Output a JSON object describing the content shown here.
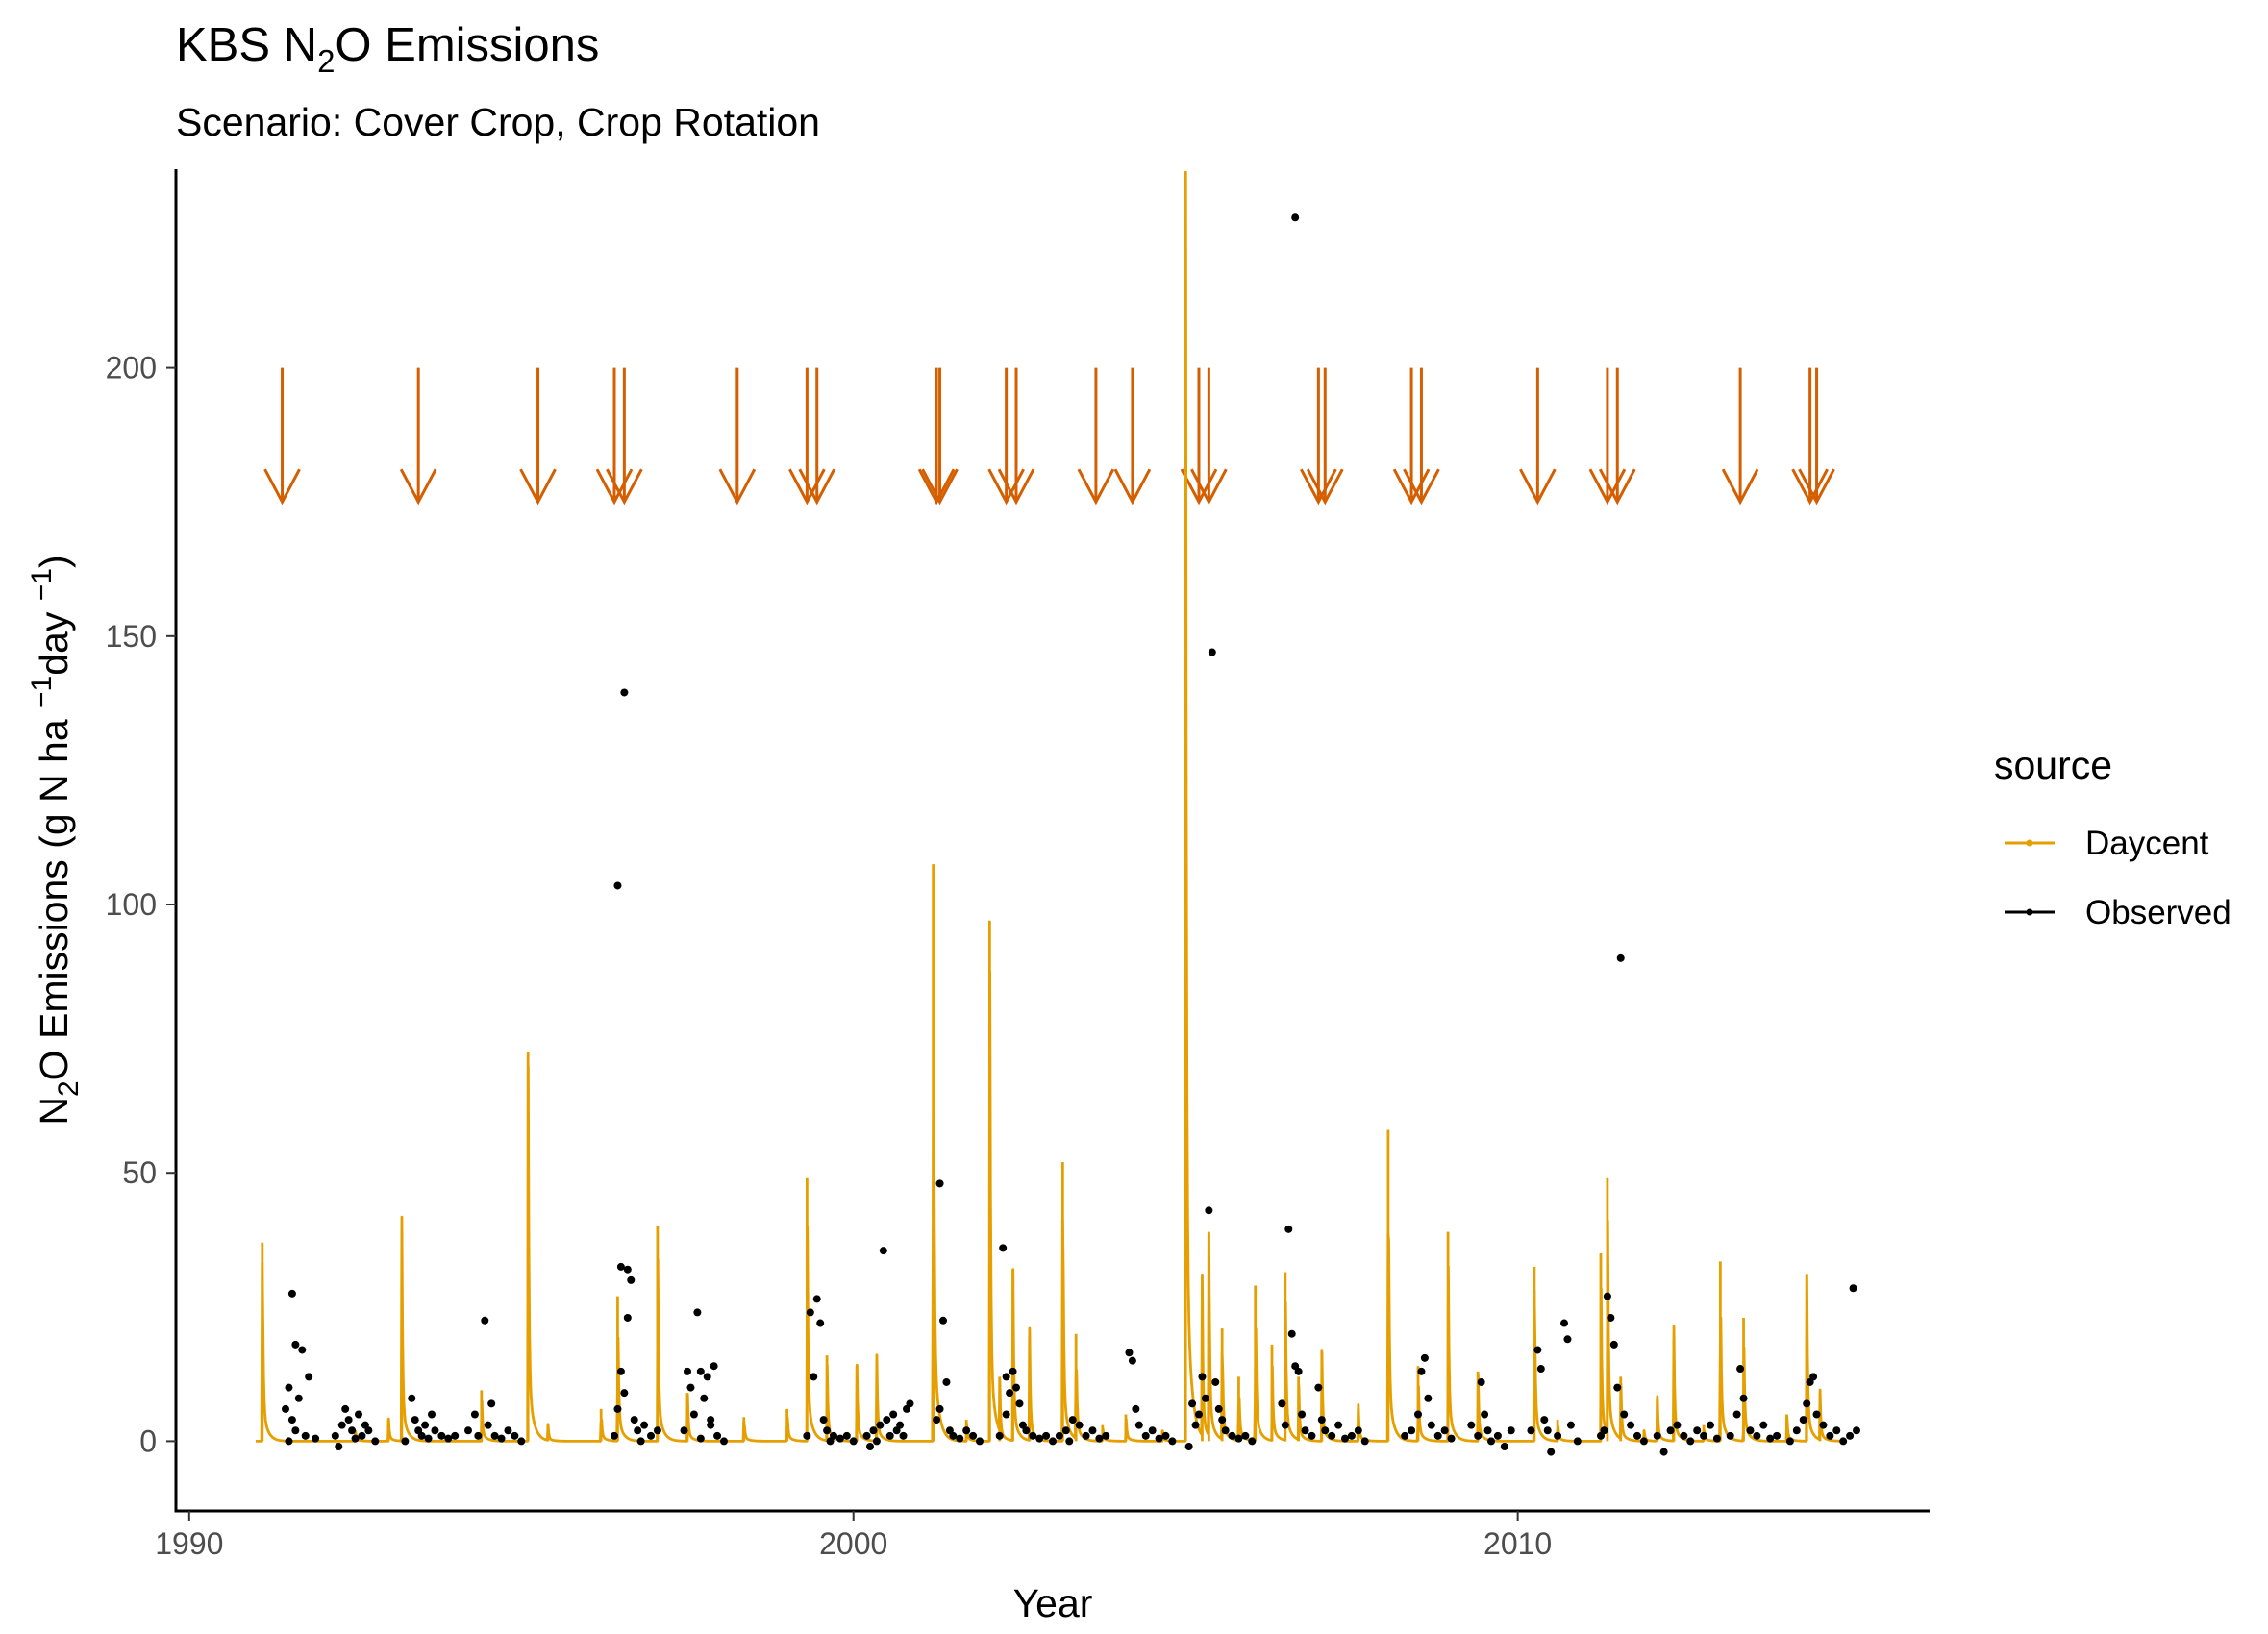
{
  "chart_data": {
    "type": "line",
    "title_prefix": "KBS N",
    "title_sub": "2",
    "title_suffix": "O Emissions",
    "subtitle": "Scenario: Cover Crop, Crop Rotation",
    "xlabel": "Year",
    "ylabel_prefix": "N",
    "ylabel_sub": "2",
    "ylabel_mid": "O Emissions (g N ha ",
    "ylabel_sup1": "−1",
    "ylabel_mid2": "day ",
    "ylabel_sup2": "−1",
    "ylabel_suffix": ")",
    "xlim": [
      1989.8,
      2016.2
    ],
    "ylim": [
      -13,
      237
    ],
    "x_ticks": [
      1990,
      2000,
      2010
    ],
    "x_tick_labels": [
      "1990",
      "2000",
      "2010"
    ],
    "y_ticks": [
      0,
      50,
      100,
      150,
      200
    ],
    "y_tick_labels": [
      "0",
      "50",
      "100",
      "150",
      "200"
    ],
    "grid": false,
    "legend": {
      "title": "source",
      "position": "right",
      "entries": [
        {
          "label": "Daycent",
          "color": "#E69F00"
        },
        {
          "label": "Observed",
          "color": "#000000"
        }
      ]
    },
    "colors": {
      "daycent": "#E69F00",
      "observed": "#000000",
      "events": "#D55E00"
    },
    "event_arrows": {
      "y_start": 200,
      "y_end": 175,
      "x": [
        1991.4,
        1993.45,
        1995.25,
        1996.4,
        1996.55,
        1998.25,
        1999.3,
        1999.45,
        2001.25,
        2001.3,
        2002.3,
        2002.45,
        2003.65,
        2004.2,
        2005.2,
        2005.35,
        2007.0,
        2007.1,
        2008.4,
        2008.55,
        2010.3,
        2011.35,
        2011.5,
        2013.35,
        2014.4,
        2014.5
      ]
    },
    "daycent_peaks": [
      {
        "x": 1991.1,
        "y": 37
      },
      {
        "x": 1992.5,
        "y": 2
      },
      {
        "x": 1993.0,
        "y": 4
      },
      {
        "x": 1993.2,
        "y": 37.5
      },
      {
        "x": 1994.4,
        "y": 9.5
      },
      {
        "x": 1995.1,
        "y": 72.5
      },
      {
        "x": 1995.4,
        "y": 3
      },
      {
        "x": 1996.2,
        "y": 6
      },
      {
        "x": 1996.45,
        "y": 27
      },
      {
        "x": 1997.05,
        "y": 40
      },
      {
        "x": 1997.5,
        "y": 9
      },
      {
        "x": 1998.35,
        "y": 4.5
      },
      {
        "x": 1999.0,
        "y": 6
      },
      {
        "x": 1999.3,
        "y": 49
      },
      {
        "x": 1999.6,
        "y": 16
      },
      {
        "x": 2000.05,
        "y": 14
      },
      {
        "x": 2000.35,
        "y": 14.5
      },
      {
        "x": 2001.2,
        "y": 107.5
      },
      {
        "x": 2001.7,
        "y": 4
      },
      {
        "x": 2002.05,
        "y": 97
      },
      {
        "x": 2002.2,
        "y": 12
      },
      {
        "x": 2002.4,
        "y": 32
      },
      {
        "x": 2002.65,
        "y": 19.5
      },
      {
        "x": 2003.15,
        "y": 52
      },
      {
        "x": 2003.35,
        "y": 20
      },
      {
        "x": 2003.75,
        "y": 3
      },
      {
        "x": 2004.1,
        "y": 5
      },
      {
        "x": 2004.65,
        "y": 2
      },
      {
        "x": 2005.0,
        "y": 222
      },
      {
        "x": 2005.25,
        "y": 27
      },
      {
        "x": 2005.35,
        "y": 39
      },
      {
        "x": 2005.55,
        "y": 21
      },
      {
        "x": 2005.8,
        "y": 12
      },
      {
        "x": 2006.05,
        "y": 29
      },
      {
        "x": 2006.3,
        "y": 18
      },
      {
        "x": 2006.5,
        "y": 31.5
      },
      {
        "x": 2006.7,
        "y": 12
      },
      {
        "x": 2007.05,
        "y": 17
      },
      {
        "x": 2007.6,
        "y": 6
      },
      {
        "x": 2008.05,
        "y": 58
      },
      {
        "x": 2008.5,
        "y": 14
      },
      {
        "x": 2008.95,
        "y": 39
      },
      {
        "x": 2009.4,
        "y": 13
      },
      {
        "x": 2010.25,
        "y": 32.5
      },
      {
        "x": 2010.6,
        "y": 4
      },
      {
        "x": 2011.25,
        "y": 35
      },
      {
        "x": 2011.35,
        "y": 49
      },
      {
        "x": 2011.55,
        "y": 12
      },
      {
        "x": 2011.9,
        "y": 2
      },
      {
        "x": 2012.1,
        "y": 8
      },
      {
        "x": 2012.35,
        "y": 19
      },
      {
        "x": 2012.8,
        "y": 3
      },
      {
        "x": 2013.05,
        "y": 33.5
      },
      {
        "x": 2013.4,
        "y": 23
      },
      {
        "x": 2014.05,
        "y": 5
      },
      {
        "x": 2014.35,
        "y": 31
      },
      {
        "x": 2014.55,
        "y": 9
      }
    ],
    "observed_points": [
      {
        "x": 1991.55,
        "y": 27.5
      },
      {
        "x": 1991.5,
        "y": 10
      },
      {
        "x": 1991.6,
        "y": 18
      },
      {
        "x": 1991.7,
        "y": 17
      },
      {
        "x": 1991.45,
        "y": 6
      },
      {
        "x": 1991.55,
        "y": 4
      },
      {
        "x": 1991.65,
        "y": 8
      },
      {
        "x": 1991.6,
        "y": 2
      },
      {
        "x": 1991.75,
        "y": 1
      },
      {
        "x": 1991.9,
        "y": 0.5
      },
      {
        "x": 1991.5,
        "y": 0
      },
      {
        "x": 1991.8,
        "y": 12
      },
      {
        "x": 1992.2,
        "y": 1
      },
      {
        "x": 1992.3,
        "y": 3
      },
      {
        "x": 1992.35,
        "y": 6
      },
      {
        "x": 1992.4,
        "y": 4
      },
      {
        "x": 1992.45,
        "y": 2
      },
      {
        "x": 1992.5,
        "y": 0.5
      },
      {
        "x": 1992.55,
        "y": 5
      },
      {
        "x": 1992.6,
        "y": 1
      },
      {
        "x": 1992.7,
        "y": 2
      },
      {
        "x": 1992.8,
        "y": 0
      },
      {
        "x": 1992.25,
        "y": -1
      },
      {
        "x": 1992.65,
        "y": 3
      },
      {
        "x": 1993.35,
        "y": 8
      },
      {
        "x": 1993.4,
        "y": 4
      },
      {
        "x": 1993.45,
        "y": 2
      },
      {
        "x": 1993.5,
        "y": 1
      },
      {
        "x": 1993.55,
        "y": 3
      },
      {
        "x": 1993.6,
        "y": 0.5
      },
      {
        "x": 1993.7,
        "y": 2
      },
      {
        "x": 1993.8,
        "y": 1
      },
      {
        "x": 1993.25,
        "y": 0
      },
      {
        "x": 1993.65,
        "y": 5
      },
      {
        "x": 1993.9,
        "y": 0.5
      },
      {
        "x": 1994.0,
        "y": 1
      },
      {
        "x": 1994.2,
        "y": 2
      },
      {
        "x": 1994.3,
        "y": 5
      },
      {
        "x": 1994.35,
        "y": 1
      },
      {
        "x": 1994.45,
        "y": 22.5
      },
      {
        "x": 1994.5,
        "y": 3
      },
      {
        "x": 1994.55,
        "y": 7
      },
      {
        "x": 1994.6,
        "y": 1
      },
      {
        "x": 1994.7,
        "y": 0.5
      },
      {
        "x": 1994.8,
        "y": 2
      },
      {
        "x": 1994.9,
        "y": 1
      },
      {
        "x": 1995.0,
        "y": 0
      },
      {
        "x": 1996.45,
        "y": 103.5
      },
      {
        "x": 1996.55,
        "y": 139.5
      },
      {
        "x": 1996.5,
        "y": 32.5
      },
      {
        "x": 1996.6,
        "y": 32
      },
      {
        "x": 1996.65,
        "y": 30
      },
      {
        "x": 1996.6,
        "y": 23
      },
      {
        "x": 1996.5,
        "y": 13
      },
      {
        "x": 1996.55,
        "y": 9
      },
      {
        "x": 1996.45,
        "y": 6
      },
      {
        "x": 1996.7,
        "y": 4
      },
      {
        "x": 1996.75,
        "y": 2
      },
      {
        "x": 1996.85,
        "y": 3
      },
      {
        "x": 1996.95,
        "y": 1
      },
      {
        "x": 1997.05,
        "y": 2
      },
      {
        "x": 1996.4,
        "y": 1
      },
      {
        "x": 1996.8,
        "y": 0
      },
      {
        "x": 1997.5,
        "y": 13
      },
      {
        "x": 1997.55,
        "y": 10
      },
      {
        "x": 1997.65,
        "y": 24
      },
      {
        "x": 1997.7,
        "y": 13
      },
      {
        "x": 1997.8,
        "y": 12
      },
      {
        "x": 1997.9,
        "y": 14
      },
      {
        "x": 1997.6,
        "y": 5
      },
      {
        "x": 1997.75,
        "y": 8
      },
      {
        "x": 1997.85,
        "y": 3
      },
      {
        "x": 1997.95,
        "y": 1
      },
      {
        "x": 1998.05,
        "y": 0
      },
      {
        "x": 1997.45,
        "y": 2
      },
      {
        "x": 1997.7,
        "y": 0.5
      },
      {
        "x": 1997.85,
        "y": 4
      },
      {
        "x": 1999.35,
        "y": 24
      },
      {
        "x": 1999.45,
        "y": 26.5
      },
      {
        "x": 1999.5,
        "y": 22
      },
      {
        "x": 1999.4,
        "y": 12
      },
      {
        "x": 1999.55,
        "y": 4
      },
      {
        "x": 1999.6,
        "y": 2
      },
      {
        "x": 1999.7,
        "y": 1
      },
      {
        "x": 1999.8,
        "y": 0.5
      },
      {
        "x": 1999.9,
        "y": 1
      },
      {
        "x": 2000.0,
        "y": 0
      },
      {
        "x": 1999.3,
        "y": 1
      },
      {
        "x": 1999.65,
        "y": 0
      },
      {
        "x": 2000.2,
        "y": 1
      },
      {
        "x": 2000.3,
        "y": 2
      },
      {
        "x": 2000.35,
        "y": 0
      },
      {
        "x": 2000.4,
        "y": 3
      },
      {
        "x": 2000.45,
        "y": 35.5
      },
      {
        "x": 2000.5,
        "y": 4
      },
      {
        "x": 2000.55,
        "y": 1
      },
      {
        "x": 2000.6,
        "y": 5
      },
      {
        "x": 2000.65,
        "y": 2
      },
      {
        "x": 2000.7,
        "y": 3
      },
      {
        "x": 2000.75,
        "y": 1
      },
      {
        "x": 2000.8,
        "y": 6
      },
      {
        "x": 2000.85,
        "y": 7
      },
      {
        "x": 2000.25,
        "y": -1
      },
      {
        "x": 2001.3,
        "y": 48
      },
      {
        "x": 2001.35,
        "y": 22.5
      },
      {
        "x": 2001.4,
        "y": 11
      },
      {
        "x": 2001.3,
        "y": 6
      },
      {
        "x": 2001.45,
        "y": 2
      },
      {
        "x": 2001.5,
        "y": 1
      },
      {
        "x": 2001.6,
        "y": 0.5
      },
      {
        "x": 2001.7,
        "y": 2
      },
      {
        "x": 2001.8,
        "y": 1
      },
      {
        "x": 2001.9,
        "y": 0
      },
      {
        "x": 2001.25,
        "y": 4
      },
      {
        "x": 2002.25,
        "y": 36
      },
      {
        "x": 2002.3,
        "y": 12
      },
      {
        "x": 2002.35,
        "y": 9
      },
      {
        "x": 2002.4,
        "y": 13
      },
      {
        "x": 2002.45,
        "y": 10
      },
      {
        "x": 2002.5,
        "y": 7
      },
      {
        "x": 2002.3,
        "y": 5
      },
      {
        "x": 2002.55,
        "y": 3
      },
      {
        "x": 2002.6,
        "y": 2
      },
      {
        "x": 2002.7,
        "y": 1
      },
      {
        "x": 2002.8,
        "y": 0.5
      },
      {
        "x": 2002.9,
        "y": 1
      },
      {
        "x": 2003.0,
        "y": 0
      },
      {
        "x": 2002.2,
        "y": 1
      },
      {
        "x": 2003.1,
        "y": 1
      },
      {
        "x": 2003.2,
        "y": 2
      },
      {
        "x": 2003.3,
        "y": 4
      },
      {
        "x": 2003.4,
        "y": 3
      },
      {
        "x": 2003.5,
        "y": 1
      },
      {
        "x": 2003.6,
        "y": 2
      },
      {
        "x": 2003.7,
        "y": 0.5
      },
      {
        "x": 2003.8,
        "y": 1
      },
      {
        "x": 2003.25,
        "y": 0
      },
      {
        "x": 2004.15,
        "y": 16.5
      },
      {
        "x": 2004.2,
        "y": 15
      },
      {
        "x": 2004.25,
        "y": 6
      },
      {
        "x": 2004.3,
        "y": 3
      },
      {
        "x": 2004.4,
        "y": 1
      },
      {
        "x": 2004.5,
        "y": 2
      },
      {
        "x": 2004.6,
        "y": 0.5
      },
      {
        "x": 2004.7,
        "y": 1
      },
      {
        "x": 2004.8,
        "y": 0
      },
      {
        "x": 2005.1,
        "y": 7
      },
      {
        "x": 2005.15,
        "y": 3
      },
      {
        "x": 2005.25,
        "y": 12
      },
      {
        "x": 2005.3,
        "y": 8
      },
      {
        "x": 2005.35,
        "y": 43
      },
      {
        "x": 2005.4,
        "y": 147
      },
      {
        "x": 2005.45,
        "y": 11
      },
      {
        "x": 2005.5,
        "y": 6
      },
      {
        "x": 2005.55,
        "y": 4
      },
      {
        "x": 2005.6,
        "y": 2
      },
      {
        "x": 2005.7,
        "y": 1
      },
      {
        "x": 2005.8,
        "y": 0.5
      },
      {
        "x": 2005.9,
        "y": 1
      },
      {
        "x": 2006.0,
        "y": 0
      },
      {
        "x": 2005.05,
        "y": -1
      },
      {
        "x": 2005.2,
        "y": 5
      },
      {
        "x": 2006.5,
        "y": 3
      },
      {
        "x": 2006.55,
        "y": 39.5
      },
      {
        "x": 2006.6,
        "y": 20
      },
      {
        "x": 2006.65,
        "y": 14
      },
      {
        "x": 2006.7,
        "y": 13
      },
      {
        "x": 2006.75,
        "y": 5
      },
      {
        "x": 2006.8,
        "y": 2
      },
      {
        "x": 2006.65,
        "y": 228
      },
      {
        "x": 2006.9,
        "y": 1
      },
      {
        "x": 2006.45,
        "y": 7
      },
      {
        "x": 2007.0,
        "y": 10
      },
      {
        "x": 2007.05,
        "y": 4
      },
      {
        "x": 2007.1,
        "y": 2
      },
      {
        "x": 2007.2,
        "y": 1
      },
      {
        "x": 2007.3,
        "y": 3
      },
      {
        "x": 2007.4,
        "y": 0.5
      },
      {
        "x": 2007.5,
        "y": 1
      },
      {
        "x": 2007.6,
        "y": 2
      },
      {
        "x": 2007.7,
        "y": 0
      },
      {
        "x": 2008.3,
        "y": 1
      },
      {
        "x": 2008.4,
        "y": 2
      },
      {
        "x": 2008.5,
        "y": 5
      },
      {
        "x": 2008.55,
        "y": 13
      },
      {
        "x": 2008.6,
        "y": 15.5
      },
      {
        "x": 2008.65,
        "y": 8
      },
      {
        "x": 2008.7,
        "y": 3
      },
      {
        "x": 2008.8,
        "y": 1
      },
      {
        "x": 2008.9,
        "y": 2
      },
      {
        "x": 2009.0,
        "y": 0.5
      },
      {
        "x": 2009.3,
        "y": 3
      },
      {
        "x": 2009.4,
        "y": 1
      },
      {
        "x": 2009.45,
        "y": 11
      },
      {
        "x": 2009.5,
        "y": 5
      },
      {
        "x": 2009.55,
        "y": 2
      },
      {
        "x": 2009.6,
        "y": 0
      },
      {
        "x": 2009.7,
        "y": 1
      },
      {
        "x": 2009.8,
        "y": -1
      },
      {
        "x": 2009.9,
        "y": 2
      },
      {
        "x": 2010.2,
        "y": 2
      },
      {
        "x": 2010.3,
        "y": 17
      },
      {
        "x": 2010.35,
        "y": 13.5
      },
      {
        "x": 2010.4,
        "y": 4
      },
      {
        "x": 2010.45,
        "y": 2
      },
      {
        "x": 2010.5,
        "y": -2
      },
      {
        "x": 2010.6,
        "y": 1
      },
      {
        "x": 2010.7,
        "y": 22
      },
      {
        "x": 2010.75,
        "y": 19
      },
      {
        "x": 2010.8,
        "y": 3
      },
      {
        "x": 2010.9,
        "y": 0
      },
      {
        "x": 2011.3,
        "y": 2
      },
      {
        "x": 2011.35,
        "y": 27
      },
      {
        "x": 2011.4,
        "y": 23
      },
      {
        "x": 2011.45,
        "y": 18
      },
      {
        "x": 2011.5,
        "y": 10
      },
      {
        "x": 2011.55,
        "y": 90
      },
      {
        "x": 2011.6,
        "y": 5
      },
      {
        "x": 2011.7,
        "y": 3
      },
      {
        "x": 2011.8,
        "y": 1
      },
      {
        "x": 2011.9,
        "y": 0
      },
      {
        "x": 2011.25,
        "y": 1
      },
      {
        "x": 2012.1,
        "y": 1
      },
      {
        "x": 2012.2,
        "y": -2
      },
      {
        "x": 2012.3,
        "y": 2
      },
      {
        "x": 2012.4,
        "y": 3
      },
      {
        "x": 2012.5,
        "y": 1
      },
      {
        "x": 2012.6,
        "y": 0
      },
      {
        "x": 2012.7,
        "y": 2
      },
      {
        "x": 2012.8,
        "y": 1
      },
      {
        "x": 2012.9,
        "y": 3
      },
      {
        "x": 2013.0,
        "y": 0.5
      },
      {
        "x": 2013.2,
        "y": 1
      },
      {
        "x": 2013.3,
        "y": 5
      },
      {
        "x": 2013.35,
        "y": 13.5
      },
      {
        "x": 2013.4,
        "y": 8
      },
      {
        "x": 2013.5,
        "y": 2
      },
      {
        "x": 2013.6,
        "y": 1
      },
      {
        "x": 2013.7,
        "y": 3
      },
      {
        "x": 2013.8,
        "y": 0.5
      },
      {
        "x": 2013.9,
        "y": 1
      },
      {
        "x": 2014.1,
        "y": 0
      },
      {
        "x": 2014.2,
        "y": 2
      },
      {
        "x": 2014.3,
        "y": 4
      },
      {
        "x": 2014.35,
        "y": 7
      },
      {
        "x": 2014.4,
        "y": 11
      },
      {
        "x": 2014.45,
        "y": 12
      },
      {
        "x": 2014.5,
        "y": 5
      },
      {
        "x": 2014.6,
        "y": 3
      },
      {
        "x": 2014.7,
        "y": 1
      },
      {
        "x": 2014.8,
        "y": 2
      },
      {
        "x": 2014.9,
        "y": 0
      },
      {
        "x": 2015.0,
        "y": 1
      },
      {
        "x": 2015.05,
        "y": 28.5
      },
      {
        "x": 2015.1,
        "y": 2
      }
    ]
  }
}
